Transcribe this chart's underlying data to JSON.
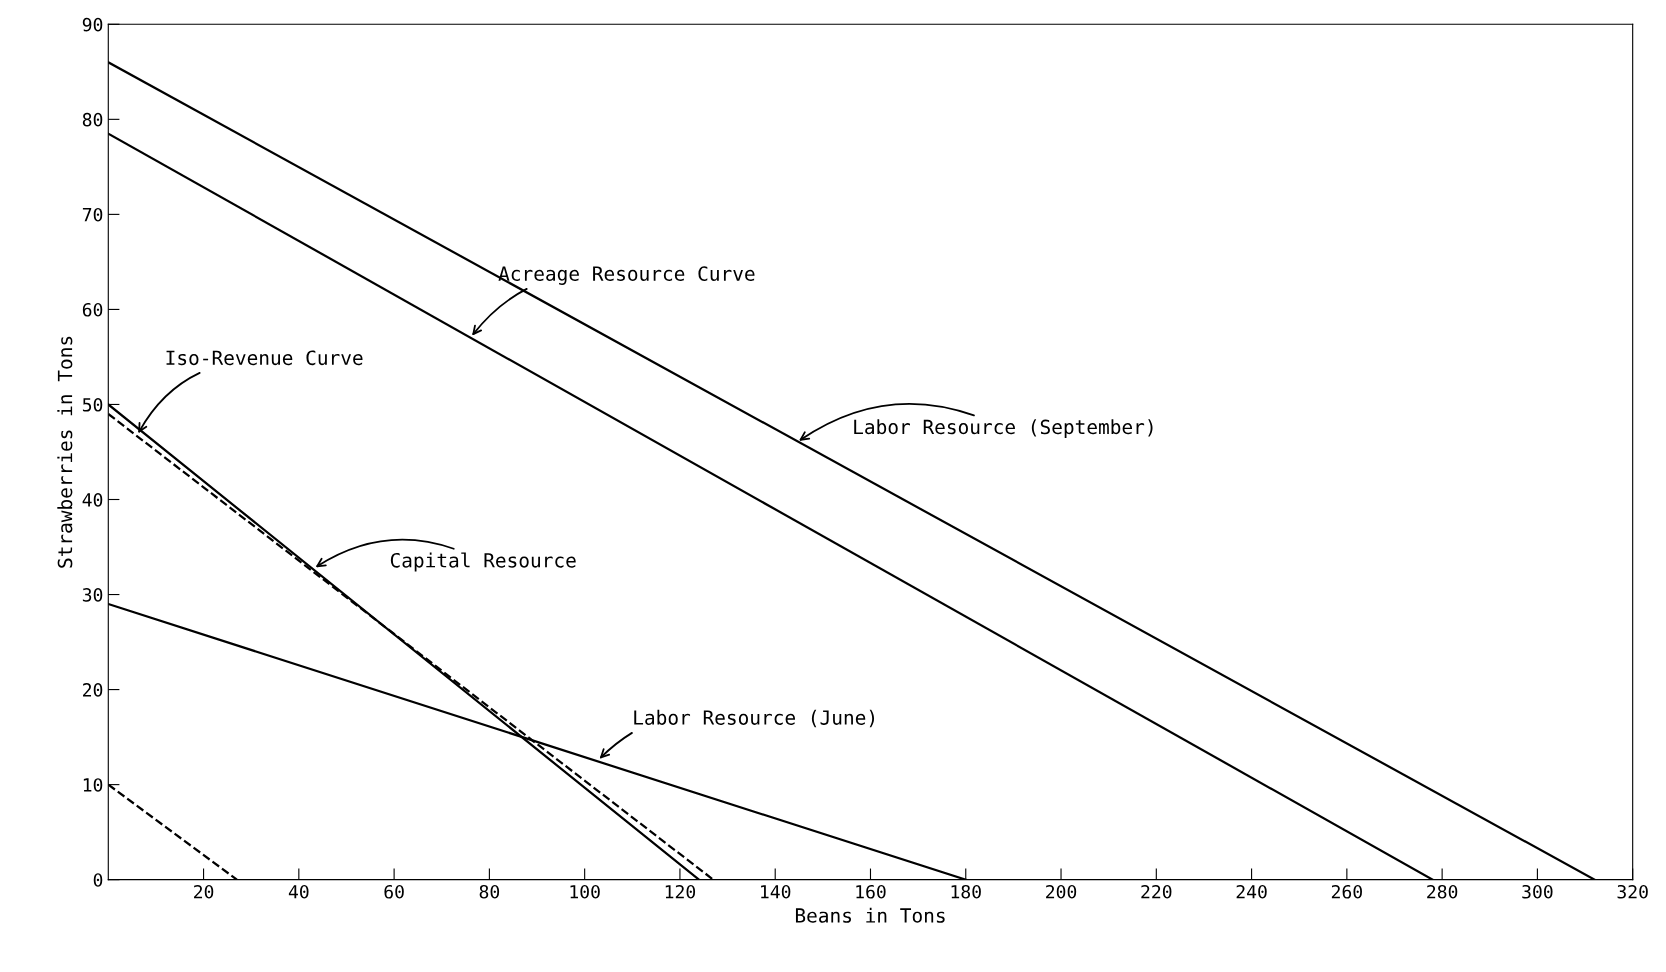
{
  "chart_data": {
    "type": "line",
    "xlabel": "Beans in Tons",
    "ylabel": "Strawberries in Tons",
    "xlim": [
      0,
      320
    ],
    "ylim": [
      0,
      90
    ],
    "xticks": [
      20,
      40,
      60,
      80,
      100,
      120,
      140,
      160,
      180,
      200,
      220,
      240,
      260,
      280,
      300,
      320
    ],
    "yticks": [
      0,
      10,
      20,
      30,
      40,
      50,
      60,
      70,
      80,
      90
    ],
    "grid": false,
    "marker": "none",
    "series": [
      {
        "color": "#000000",
        "line_style": "solid",
        "x": [
          0,
          312
        ],
        "values": [
          86,
          0
        ]
      },
      {
        "color": "#000000",
        "line_style": "solid",
        "x": [
          0,
          278
        ],
        "values": [
          78.5,
          0
        ]
      },
      {
        "color": "#000000",
        "line_style": "solid",
        "x": [
          0,
          124
        ],
        "values": [
          50,
          0
        ]
      },
      {
        "color": "#000000",
        "line_style": "dashed",
        "x": [
          0,
          127
        ],
        "values": [
          49,
          0
        ]
      },
      {
        "color": "#000000",
        "line_style": "dashed",
        "x": [
          0,
          27
        ],
        "values": [
          10,
          0
        ]
      },
      {
        "color": "#000000",
        "line_style": "solid",
        "x": [
          0,
          180
        ],
        "values": [
          29,
          0
        ]
      }
    ],
    "annotations": [
      {
        "text": "Acreage Resource Curve",
        "x": 76,
        "y": 57
      },
      {
        "text": "Labor Resource (September)",
        "x": 144.5,
        "y": 46
      },
      {
        "text": "Iso-Revenue Curve",
        "x": 6,
        "y": 46.7
      },
      {
        "text": "Capital Resource",
        "x": 43,
        "y": 32.7
      },
      {
        "text": "Labor Resource (June)",
        "x": 102.7,
        "y": 12.5
      }
    ]
  }
}
